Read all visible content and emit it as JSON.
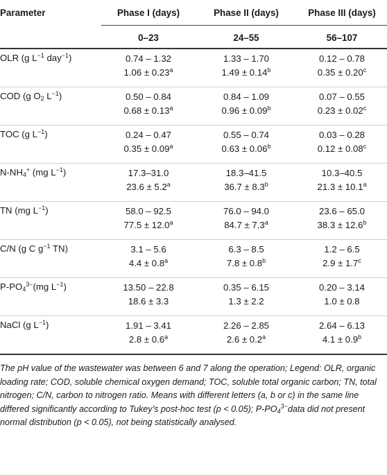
{
  "header": {
    "param_label": "Parameter",
    "phases": [
      {
        "name": "Phase I (days)",
        "range": "0–23"
      },
      {
        "name": "Phase II (days)",
        "range": "24–55"
      },
      {
        "name": "Phase III (days)",
        "range": "56–107"
      }
    ]
  },
  "rows": [
    {
      "param_html": "OLR (g L<sup>−1</sup> day<sup>−1</sup>)",
      "cells": [
        {
          "range": "0.74 – 1.32",
          "mean_html": "1.06 ± 0.23<sup>a</sup>"
        },
        {
          "range": "1.33 – 1.70",
          "mean_html": "1.49 ± 0.14<sup>b</sup>"
        },
        {
          "range": "0.12 – 0.78",
          "mean_html": "0.35 ± 0.20<sup>c</sup>"
        }
      ]
    },
    {
      "param_html": "COD (g O<sub>2</sub> L<sup>−1</sup>)",
      "cells": [
        {
          "range": "0.50 – 0.84",
          "mean_html": "0.68 ± 0.13<sup>a</sup>"
        },
        {
          "range": "0.84 – 1.09",
          "mean_html": "0.96 ± 0.09<sup>b</sup>"
        },
        {
          "range": "0.07 – 0.55",
          "mean_html": "0.23 ± 0.02<sup>c</sup>"
        }
      ]
    },
    {
      "param_html": "TOC (g L<sup>−1</sup>)",
      "cells": [
        {
          "range": "0.24 – 0.47",
          "mean_html": "0.35 ± 0.09<sup>a</sup>"
        },
        {
          "range": "0.55 – 0.74",
          "mean_html": "0.63 ± 0.06<sup>b</sup>"
        },
        {
          "range": "0.03 – 0.28",
          "mean_html": "0.12 ± 0.08<sup>c</sup>"
        }
      ]
    },
    {
      "param_html": "N-NH<sub>4</sub><sup>+</sup> (mg L<sup>−1</sup>)",
      "cells": [
        {
          "range": "17.3–31.0",
          "mean_html": "23.6 ± 5.2<sup>a</sup>"
        },
        {
          "range": "18.3–41.5",
          "mean_html": "36.7 ± 8.3<sup>b</sup>"
        },
        {
          "range": "10.3–40.5",
          "mean_html": "21.3 ± 10.1<sup>a</sup>"
        }
      ]
    },
    {
      "param_html": "TN (mg L<sup>−1</sup>)",
      "cells": [
        {
          "range": "58.0 – 92.5",
          "mean_html": "77.5 ± 12.0<sup>a</sup>"
        },
        {
          "range": "76.0 – 94.0",
          "mean_html": "84.7 ± 7.3<sup>a</sup>"
        },
        {
          "range": "23.6 – 65.0",
          "mean_html": "38.3 ± 12.6<sup>b</sup>"
        }
      ]
    },
    {
      "param_html": "C/N (g C g<sup>−1</sup> TN)",
      "cells": [
        {
          "range": "3.1 – 5.6",
          "mean_html": "4.4 ± 0.8<sup>a</sup>"
        },
        {
          "range": "6.3 – 8.5",
          "mean_html": "7.8 ± 0.8<sup>b</sup>"
        },
        {
          "range": "1.2 – 6.5",
          "mean_html": "2.9 ± 1.7<sup>c</sup>"
        }
      ]
    },
    {
      "param_html": "P-PO<sub>4</sub><sup>3−</sup>(mg L<sup>−1</sup>)",
      "cells": [
        {
          "range": "13.50 – 22.8",
          "mean_html": "18.6 ± 3.3"
        },
        {
          "range": "0.35 – 6.15",
          "mean_html": "1.3 ± 2.2"
        },
        {
          "range": "0.20 – 3.14",
          "mean_html": "1.0 ± 0.8"
        }
      ]
    },
    {
      "param_html": "NaCl (g L<sup>−1</sup>)",
      "cells": [
        {
          "range": "1.91 – 3.41",
          "mean_html": "2.8 ± 0.6<sup>a</sup>"
        },
        {
          "range": "2.26 – 2.85",
          "mean_html": "2.6 ± 0.2<sup>a</sup>"
        },
        {
          "range": "2.64 – 6.13",
          "mean_html": "4.1 ± 0.9<sup>b</sup>"
        }
      ]
    }
  ],
  "footnote_html": "The pH value of the wastewater was between 6 and 7 along the operation; Legend: OLR, organic loading rate; COD, soluble chemical oxygen demand; TOC, soluble total organic carbon; TN, total nitrogen; C/N, carbon to nitrogen ratio. Means with different letters (a, b or c) in the same line differed significantly according to Tukey’s post-hoc test (p &lt; 0.05); P-PO<sub>4</sub><sup>3−</sup>data did not present normal distribution (p &lt; 0.05), not being statistically analysed."
}
